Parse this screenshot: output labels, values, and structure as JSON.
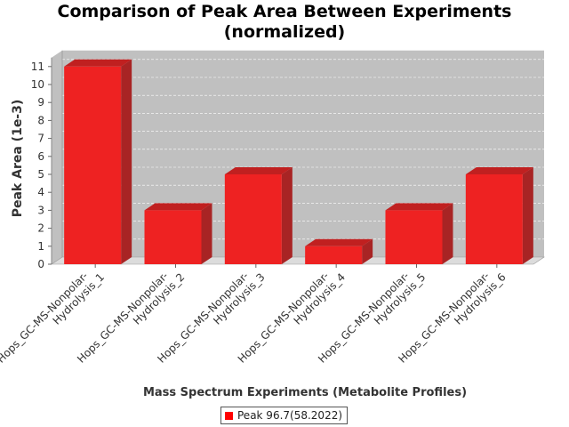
{
  "chart_data": {
    "type": "bar",
    "title_line1": "Comparison of Peak Area Between Experiments",
    "title_line2": "(normalized)",
    "xlabel": "Mass Spectrum Experiments (Metabolite Profiles)",
    "ylabel": "Peak Area (1e-3)",
    "categories": [
      [
        "Hops_GC-MS-Nonpolar-",
        "Hydrolysis_1"
      ],
      [
        "Hops_GC-MS-Nonpolar-",
        "Hydrolysis_2"
      ],
      [
        "Hops_GC-MS-Nonpolar-",
        "Hydrolysis_3"
      ],
      [
        "Hops_GC-MS-Nonpolar-",
        "Hydrolysis_4"
      ],
      [
        "Hops_GC-MS-Nonpolar-",
        "Hydrolysis_5"
      ],
      [
        "Hops_GC-MS-Nonpolar-",
        "Hydrolysis_6"
      ]
    ],
    "series": [
      {
        "name": "Peak 96.7(58.2022)",
        "values": [
          11,
          3,
          5,
          1,
          3,
          5
        ]
      }
    ],
    "ylim": [
      0,
      11
    ],
    "yticks": [
      "0",
      "1",
      "2",
      "3",
      "4",
      "5",
      "6",
      "7",
      "8",
      "9",
      "10",
      "11"
    ],
    "grid": true,
    "legend_position": "bottom",
    "colors": {
      "bar_front": "#ee2222",
      "bar_top": "#c02020",
      "bar_side": "#a82424",
      "plot_background": "#c0c0c0",
      "plot_floor": "#dcdcdc"
    }
  }
}
